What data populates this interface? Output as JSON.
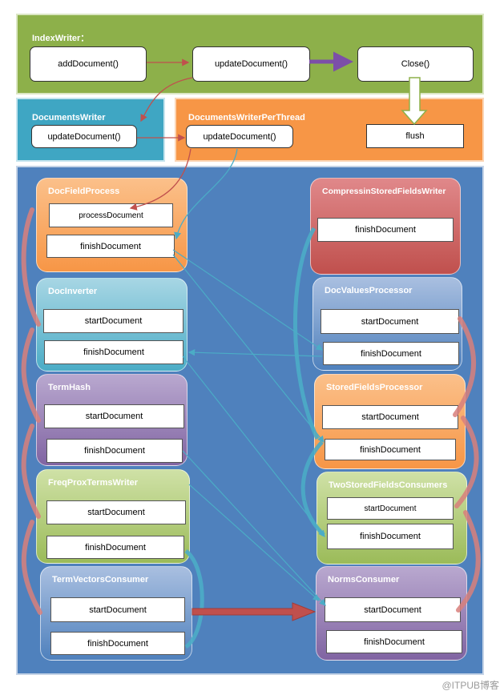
{
  "index_writer": {
    "title": "IndexWriter：",
    "add_document": "addDocument()",
    "update_document": "updateDocument()",
    "close": "Close()"
  },
  "documents_writer": {
    "title": "DocumentsWriter",
    "update_document": "updateDocument()"
  },
  "dwpt": {
    "title": "DocumentsWriterPerThread",
    "update_document": "updateDocument()",
    "flush": "flush"
  },
  "left_chain": [
    {
      "title": "DocFieldProcess",
      "methods": [
        "processDocument",
        "finishDocument"
      ]
    },
    {
      "title": "DocInverter",
      "methods": [
        "startDocument",
        "finishDocument"
      ]
    },
    {
      "title": "TermHash",
      "methods": [
        "startDocument",
        "finishDocument"
      ]
    },
    {
      "title": "FreqProxTermsWriter",
      "methods": [
        "startDocument",
        "finishDocument"
      ]
    },
    {
      "title": "TermVectorsConsumer",
      "methods": [
        "startDocument",
        "finishDocument"
      ]
    }
  ],
  "right_chain": [
    {
      "title": "CompressinStoredFieldsWriter",
      "methods": [
        "finishDocument"
      ]
    },
    {
      "title": "DocValuesProcessor",
      "methods": [
        "startDocument",
        "finishDocument"
      ]
    },
    {
      "title": "StoredFieldsProcessor",
      "methods": [
        "startDocument",
        "finishDocument"
      ]
    },
    {
      "title": "TwoStoredFieldsConsumers",
      "methods": [
        "startDocument",
        "finishDocument"
      ]
    },
    {
      "title": "NormsConsumer",
      "methods": [
        "startDocument",
        "finishDocument"
      ]
    }
  ],
  "watermark": "@ITPUB博客",
  "colors": {
    "index_writer_bg": "#8db04a",
    "documents_writer_bg": "#3fa6c3",
    "dwpt_bg": "#f79646",
    "main_bg": "#4f81bd",
    "arrow_red": "#c0504d",
    "arrow_teal": "#4bacc6",
    "arrow_purple": "#8064a2"
  }
}
